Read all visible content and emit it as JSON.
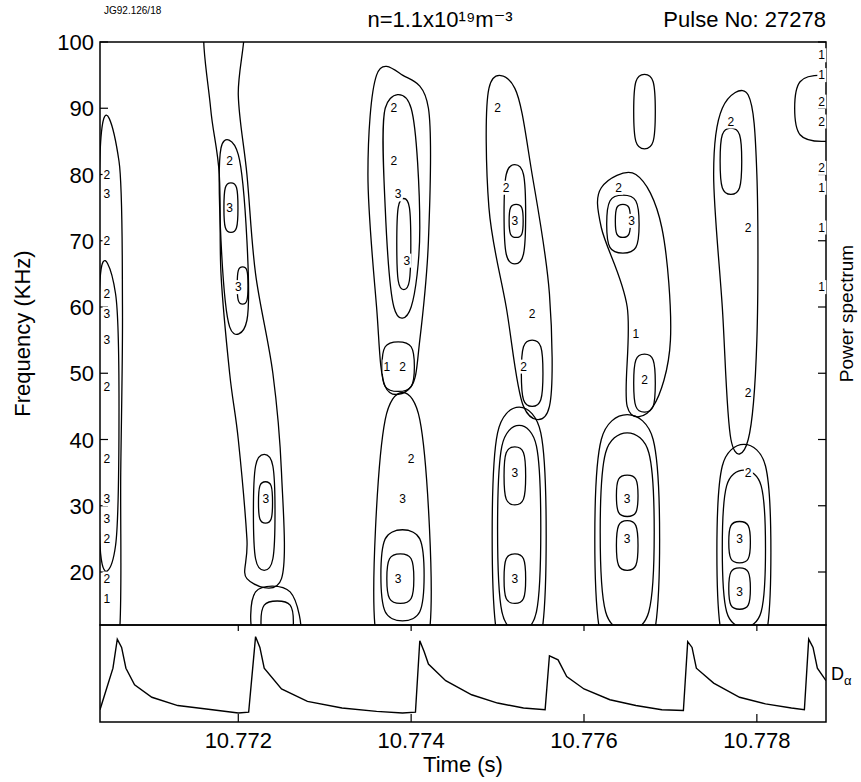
{
  "chart_data": {
    "type": "contour",
    "title": "n=1.1x10¹⁹m⁻³",
    "subtitle": "Pulse No: 27278",
    "annotations": [
      "JG92.126/18"
    ],
    "x_label": "Time (s)",
    "y_label": "Frequency (KHz)",
    "y2_label": "Power spectrum",
    "xlim": [
      10.7704,
      10.7788
    ],
    "xticks": [
      10.772,
      10.774,
      10.776,
      10.778
    ],
    "ylim": [
      12,
      100
    ],
    "yticks": [
      20,
      30,
      40,
      50,
      60,
      70,
      80,
      90,
      100
    ],
    "contours": [
      {
        "level": 1,
        "t": [
          10.7704,
          10.77062,
          10.77066,
          10.77064,
          10.77062,
          10.7704
        ],
        "f": [
          83,
          82,
          60,
          35,
          10,
          10
        ]
      },
      {
        "level": 2,
        "t": [
          10.7704,
          10.77058,
          10.77062,
          10.77058,
          10.7704
        ],
        "f": [
          64,
          62,
          45,
          24,
          24
        ]
      },
      {
        "level": 1,
        "t": [
          10.77162,
          10.77168,
          10.77178,
          10.7718,
          10.7719,
          10.772,
          10.7721,
          10.7721,
          10.7725,
          10.7725,
          10.7724,
          10.7722,
          10.7721,
          10.772,
          10.77205
        ],
        "f": [
          103,
          90,
          80,
          65,
          50,
          40,
          25,
          19,
          19,
          35,
          50,
          65,
          80,
          92,
          103
        ]
      },
      {
        "level": 2,
        "t": [
          10.7718,
          10.772,
          10.7721,
          10.7721,
          10.7719,
          10.7718
        ],
        "f": [
          84,
          83,
          70,
          58,
          57,
          70
        ]
      },
      {
        "level": 3,
        "t": [
          10.77185,
          10.77198,
          10.77198,
          10.77185
        ],
        "f": [
          78,
          78,
          72,
          72
        ]
      },
      {
        "level": 3,
        "t": [
          10.772,
          10.7721,
          10.7721,
          10.772
        ],
        "f": [
          65.5,
          65.5,
          61,
          61
        ]
      },
      {
        "level": 2,
        "t": [
          10.7722,
          10.7724,
          10.7724,
          10.7722
        ],
        "f": [
          36,
          36,
          22,
          22
        ]
      },
      {
        "level": 3,
        "t": [
          10.77225,
          10.77238,
          10.77238,
          10.77225
        ],
        "f": [
          33,
          33,
          28,
          28
        ]
      },
      {
        "level": 1,
        "t": [
          10.7722,
          10.7726,
          10.7727,
          10.7722
        ],
        "f": [
          17,
          17,
          10,
          10
        ]
      },
      {
        "level": 2,
        "t": [
          10.7723,
          10.7726,
          10.7726,
          10.7723
        ],
        "f": [
          15,
          15,
          10,
          10
        ]
      },
      {
        "level": 1,
        "t": [
          10.7736,
          10.7739,
          10.7742,
          10.7742,
          10.7741,
          10.774,
          10.7737,
          10.7736,
          10.7735
        ],
        "f": [
          95,
          95,
          90,
          70,
          55,
          48,
          48,
          60,
          80
        ]
      },
      {
        "level": 2,
        "t": [
          10.7737,
          10.774,
          10.7741,
          10.774,
          10.7738,
          10.7737
        ],
        "f": [
          90,
          90,
          72,
          60,
          60,
          75
        ]
      },
      {
        "level": 3,
        "t": [
          10.77385,
          10.77398,
          10.77398,
          10.77385
        ],
        "f": [
          75,
          75,
          64,
          64
        ]
      },
      {
        "level": 1,
        "t": [
          10.7737,
          10.774,
          10.774,
          10.7737
        ],
        "f": [
          54,
          54,
          48,
          48
        ]
      },
      {
        "level": 1,
        "t": [
          10.7737,
          10.7741,
          10.7742,
          10.7736
        ],
        "f": [
          43,
          43,
          10,
          10
        ]
      },
      {
        "level": 2,
        "t": [
          10.7737,
          10.7741,
          10.7741,
          10.7737
        ],
        "f": [
          25,
          25,
          14,
          14
        ]
      },
      {
        "level": 3,
        "t": [
          10.77375,
          10.774,
          10.774,
          10.77375
        ],
        "f": [
          22,
          22,
          16,
          16
        ]
      },
      {
        "level": 1,
        "t": [
          10.7749,
          10.7752,
          10.7754,
          10.7756,
          10.7756,
          10.7753,
          10.7751,
          10.7749
        ],
        "f": [
          93,
          93,
          80,
          62,
          45,
          45,
          60,
          75
        ]
      },
      {
        "level": 2,
        "t": [
          10.7751,
          10.7753,
          10.7753,
          10.7751
        ],
        "f": [
          80,
          80,
          68,
          68
        ]
      },
      {
        "level": 3,
        "t": [
          10.77515,
          10.77528,
          10.77528,
          10.77515
        ],
        "f": [
          75,
          75,
          71,
          71
        ]
      },
      {
        "level": 2,
        "t": [
          10.7753,
          10.7755,
          10.7755,
          10.7753
        ],
        "f": [
          54,
          54,
          46,
          46
        ]
      },
      {
        "level": 1,
        "t": [
          10.775,
          10.7755,
          10.7755,
          10.775
        ],
        "f": [
          41,
          41,
          10,
          10
        ]
      },
      {
        "level": 2,
        "t": [
          10.77505,
          10.77545,
          10.77545,
          10.77505
        ],
        "f": [
          39,
          39,
          14,
          14
        ]
      },
      {
        "level": 3,
        "t": [
          10.7751,
          10.7753,
          10.7753,
          10.7751
        ],
        "f": [
          38,
          38,
          31,
          31
        ]
      },
      {
        "level": 3,
        "t": [
          10.7751,
          10.7753,
          10.7753,
          10.7751
        ],
        "f": [
          22,
          22,
          16,
          16
        ]
      },
      {
        "level": 1,
        "t": [
          10.7762,
          10.7766,
          10.7769,
          10.777,
          10.7768,
          10.7765,
          10.7765,
          10.7762
        ],
        "f": [
          78,
          80,
          72,
          55,
          45,
          45,
          60,
          72
        ]
      },
      {
        "level": 2,
        "t": [
          10.7763,
          10.7766,
          10.7766,
          10.7763
        ],
        "f": [
          76,
          76,
          69,
          69
        ]
      },
      {
        "level": 3,
        "t": [
          10.77638,
          10.77652,
          10.77652,
          10.77638
        ],
        "f": [
          75,
          75,
          71,
          71
        ]
      },
      {
        "level": 2,
        "t": [
          10.7766,
          10.7768,
          10.7768,
          10.7766
        ],
        "f": [
          52,
          52,
          45,
          45
        ]
      },
      {
        "level": 1,
        "t": [
          10.7762,
          10.7768,
          10.7768,
          10.7762
        ],
        "f": [
          40,
          40,
          10,
          10
        ]
      },
      {
        "level": 2,
        "t": [
          10.77625,
          10.77675,
          10.77675,
          10.77625
        ],
        "f": [
          38,
          38,
          14,
          14
        ]
      },
      {
        "level": 3,
        "t": [
          10.7764,
          10.7766,
          10.7766,
          10.7764
        ],
        "f": [
          34,
          34,
          29,
          29
        ]
      },
      {
        "level": 3,
        "t": [
          10.7764,
          10.7766,
          10.7766,
          10.7764
        ],
        "f": [
          27,
          27,
          21,
          21
        ]
      },
      {
        "level": 1,
        "t": [
          10.7766,
          10.7768,
          10.7768,
          10.7766
        ],
        "f": [
          94,
          94,
          85,
          85
        ]
      },
      {
        "level": 1,
        "t": [
          10.7776,
          10.7779,
          10.778,
          10.778,
          10.7779,
          10.7777,
          10.7776,
          10.7775
        ],
        "f": [
          90,
          92,
          80,
          55,
          40,
          40,
          60,
          80
        ]
      },
      {
        "level": 2,
        "t": [
          10.7776,
          10.7778,
          10.7778,
          10.7776
        ],
        "f": [
          86,
          86,
          78,
          78
        ]
      },
      {
        "level": 1,
        "t": [
          10.7776,
          10.7781,
          10.7781,
          10.7776
        ],
        "f": [
          36,
          36,
          10,
          10
        ]
      },
      {
        "level": 2,
        "t": [
          10.77765,
          10.77805,
          10.77805,
          10.77765
        ],
        "f": [
          33,
          33,
          14,
          14
        ]
      },
      {
        "level": 3,
        "t": [
          10.7777,
          10.7779,
          10.7779,
          10.7777
        ],
        "f": [
          27,
          27,
          22,
          22
        ]
      },
      {
        "level": 3,
        "t": [
          10.7777,
          10.7779,
          10.7779,
          10.7777
        ],
        "f": [
          20,
          20,
          15,
          15
        ]
      },
      {
        "level": 1,
        "t": [
          10.7785,
          10.779,
          10.779,
          10.7785
        ],
        "f": [
          94,
          94,
          86,
          86
        ]
      }
    ],
    "labels": [
      {
        "t": 10.77048,
        "f": 80,
        "level": 2
      },
      {
        "t": 10.77048,
        "f": 77,
        "level": 3
      },
      {
        "t": 10.77048,
        "f": 70,
        "level": 2
      },
      {
        "t": 10.77048,
        "f": 62,
        "level": 2
      },
      {
        "t": 10.77048,
        "f": 59,
        "level": 3
      },
      {
        "t": 10.77048,
        "f": 55,
        "level": 3
      },
      {
        "t": 10.77048,
        "f": 48,
        "level": 2
      },
      {
        "t": 10.77048,
        "f": 37,
        "level": 2
      },
      {
        "t": 10.77048,
        "f": 31,
        "level": 3
      },
      {
        "t": 10.77048,
        "f": 28,
        "level": 3
      },
      {
        "t": 10.77048,
        "f": 25,
        "level": 2
      },
      {
        "t": 10.77048,
        "f": 19,
        "level": 2
      },
      {
        "t": 10.77048,
        "f": 16,
        "level": 1
      },
      {
        "t": 10.7719,
        "f": 75,
        "level": 3
      },
      {
        "t": 10.772,
        "f": 63,
        "level": 3
      },
      {
        "t": 10.7719,
        "f": 82,
        "level": 2
      },
      {
        "t": 10.77232,
        "f": 31,
        "level": 3
      },
      {
        "t": 10.7738,
        "f": 90,
        "level": 2
      },
      {
        "t": 10.7738,
        "f": 82,
        "level": 2
      },
      {
        "t": 10.77385,
        "f": 77,
        "level": 3
      },
      {
        "t": 10.77395,
        "f": 67,
        "level": 3
      },
      {
        "t": 10.77372,
        "f": 51,
        "level": 1
      },
      {
        "t": 10.7739,
        "f": 51,
        "level": 2
      },
      {
        "t": 10.774,
        "f": 37,
        "level": 2
      },
      {
        "t": 10.7739,
        "f": 31,
        "level": 3
      },
      {
        "t": 10.77385,
        "f": 19,
        "level": 3
      },
      {
        "t": 10.775,
        "f": 90,
        "level": 2
      },
      {
        "t": 10.7751,
        "f": 78,
        "level": 2
      },
      {
        "t": 10.7752,
        "f": 73,
        "level": 3
      },
      {
        "t": 10.7754,
        "f": 59,
        "level": 2
      },
      {
        "t": 10.7753,
        "f": 51,
        "level": 2
      },
      {
        "t": 10.7752,
        "f": 35,
        "level": 3
      },
      {
        "t": 10.7752,
        "f": 19,
        "level": 3
      },
      {
        "t": 10.7764,
        "f": 78,
        "level": 2
      },
      {
        "t": 10.77655,
        "f": 73,
        "level": 3
      },
      {
        "t": 10.7767,
        "f": 49,
        "level": 2
      },
      {
        "t": 10.7766,
        "f": 56,
        "level": 1
      },
      {
        "t": 10.7765,
        "f": 31,
        "level": 3
      },
      {
        "t": 10.7765,
        "f": 25,
        "level": 3
      },
      {
        "t": 10.7777,
        "f": 88,
        "level": 2
      },
      {
        "t": 10.7779,
        "f": 72,
        "level": 2
      },
      {
        "t": 10.7779,
        "f": 47,
        "level": 2
      },
      {
        "t": 10.7779,
        "f": 35,
        "level": 2
      },
      {
        "t": 10.7778,
        "f": 25,
        "level": 3
      },
      {
        "t": 10.7778,
        "f": 17,
        "level": 3
      },
      {
        "t": 10.77875,
        "f": 98,
        "level": 1
      },
      {
        "t": 10.77875,
        "f": 95,
        "level": 1
      },
      {
        "t": 10.77875,
        "f": 91,
        "level": 2
      },
      {
        "t": 10.77875,
        "f": 88,
        "level": 2
      },
      {
        "t": 10.77875,
        "f": 81,
        "level": 2
      },
      {
        "t": 10.77875,
        "f": 78,
        "level": 1
      },
      {
        "t": 10.77875,
        "f": 72,
        "level": 1
      },
      {
        "t": 10.77875,
        "f": 63,
        "level": 1
      }
    ],
    "dalpha": {
      "label": "Dα",
      "ylim": [
        0,
        1
      ],
      "t": [
        10.7704,
        10.77055,
        10.7706,
        10.77065,
        10.7707,
        10.7708,
        10.771,
        10.7713,
        10.7717,
        10.772,
        10.77212,
        10.7722,
        10.77225,
        10.7723,
        10.7725,
        10.7728,
        10.7732,
        10.7736,
        10.7739,
        10.77405,
        10.7741,
        10.77415,
        10.7742,
        10.7744,
        10.7747,
        10.775,
        10.7753,
        10.77555,
        10.7756,
        10.7757,
        10.7758,
        10.776,
        10.7763,
        10.7766,
        10.7769,
        10.77715,
        10.7772,
        10.77725,
        10.7773,
        10.7775,
        10.7778,
        10.7781,
        10.7784,
        10.77855,
        10.7786,
        10.77865,
        10.7787,
        10.7788
      ],
      "values": [
        0.1,
        0.6,
        0.95,
        0.85,
        0.6,
        0.4,
        0.25,
        0.15,
        0.1,
        0.06,
        0.07,
        0.98,
        0.85,
        0.6,
        0.35,
        0.2,
        0.12,
        0.08,
        0.06,
        0.07,
        0.93,
        0.8,
        0.65,
        0.45,
        0.28,
        0.18,
        0.12,
        0.1,
        0.75,
        0.7,
        0.5,
        0.35,
        0.22,
        0.15,
        0.1,
        0.09,
        0.92,
        0.85,
        0.6,
        0.42,
        0.25,
        0.17,
        0.12,
        0.1,
        0.95,
        0.85,
        0.6,
        0.45
      ]
    }
  }
}
